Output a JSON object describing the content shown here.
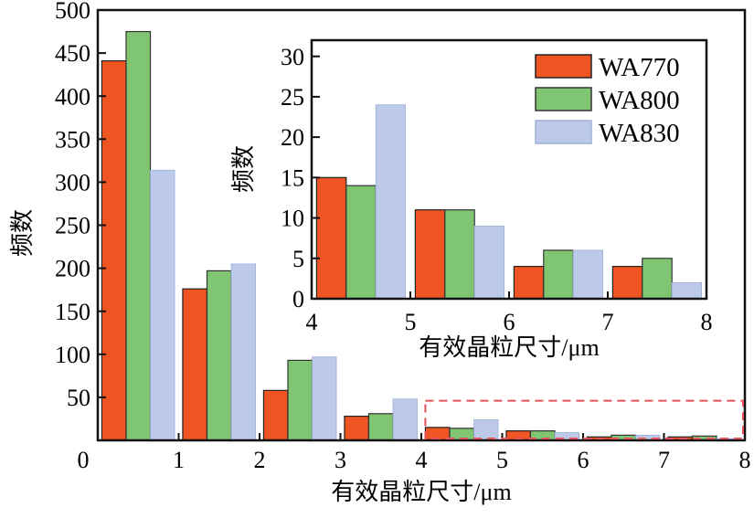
{
  "chart_data": [
    {
      "type": "bar",
      "title": "",
      "xlabel": "有效晶粒尺寸/μm",
      "ylabel": "频数",
      "xlim": [
        0,
        8
      ],
      "ylim": [
        0,
        500
      ],
      "xticks": [
        "0",
        "1",
        "2",
        "3",
        "4",
        "5",
        "6",
        "7",
        "8"
      ],
      "yticks": [
        "50",
        "100",
        "150",
        "200",
        "250",
        "300",
        "350",
        "400",
        "450",
        "500"
      ],
      "bins": [
        [
          0,
          1
        ],
        [
          1,
          2
        ],
        [
          2,
          3
        ],
        [
          3,
          4
        ],
        [
          4,
          5
        ],
        [
          5,
          6
        ],
        [
          6,
          7
        ],
        [
          7,
          8
        ]
      ],
      "series": [
        {
          "name": "WA770",
          "color": "#ee5522",
          "values": [
            441,
            176,
            58,
            28,
            15,
            11,
            4,
            4
          ]
        },
        {
          "name": "WA800",
          "color": "#80c672",
          "values": [
            475,
            197,
            93,
            31,
            14,
            11,
            6,
            5
          ]
        },
        {
          "name": "WA830",
          "color": "#bcc9e8",
          "values": [
            314,
            205,
            97,
            48,
            24,
            9,
            6,
            2
          ]
        }
      ],
      "annotation": "dashed box marking 4–8 μm region"
    },
    {
      "type": "bar",
      "title": "",
      "xlabel": "有效晶粒尺寸/μm",
      "ylabel": "频数",
      "xlim": [
        4,
        8
      ],
      "ylim": [
        0,
        32
      ],
      "xticks": [
        "4",
        "5",
        "6",
        "7",
        "8"
      ],
      "yticks": [
        "0",
        "5",
        "10",
        "15",
        "20",
        "25",
        "30"
      ],
      "bins": [
        [
          4,
          5
        ],
        [
          5,
          6
        ],
        [
          6,
          7
        ],
        [
          7,
          8
        ]
      ],
      "series": [
        {
          "name": "WA770",
          "color": "#ee5522",
          "values": [
            15,
            11,
            4,
            4
          ]
        },
        {
          "name": "WA800",
          "color": "#80c672",
          "values": [
            14,
            11,
            6,
            5
          ]
        },
        {
          "name": "WA830",
          "color": "#bcc9e8",
          "values": [
            24,
            9,
            6,
            2
          ]
        }
      ],
      "legend": "top-right"
    }
  ]
}
